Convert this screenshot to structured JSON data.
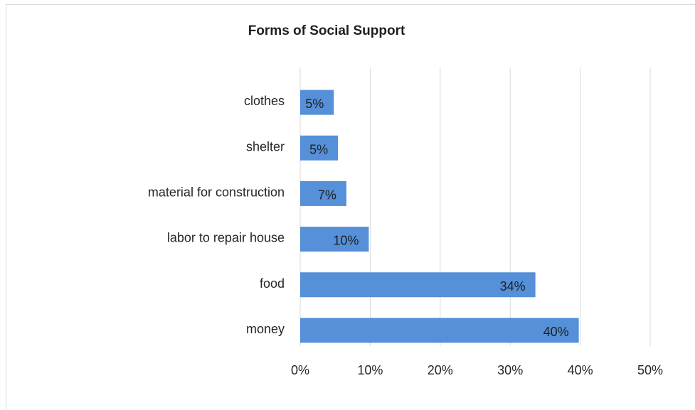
{
  "chart_data": {
    "type": "bar",
    "orientation": "horizontal",
    "title": "Forms of Social Support",
    "categories": [
      "clothes",
      "shelter",
      "material for construction",
      "labor to repair house",
      "food",
      "money"
    ],
    "values": [
      4.8,
      5.4,
      6.6,
      9.8,
      33.6,
      39.8
    ],
    "data_labels": [
      "5%",
      "5%",
      "7%",
      "10%",
      "34%",
      "40%"
    ],
    "xlim": [
      0,
      50
    ],
    "x_ticks": [
      0,
      10,
      20,
      30,
      40,
      50
    ],
    "x_tick_labels": [
      "0%",
      "10%",
      "20%",
      "30%",
      "40%",
      "50%"
    ],
    "grid": true,
    "legend": "none",
    "bar_color": "#5590d8"
  }
}
